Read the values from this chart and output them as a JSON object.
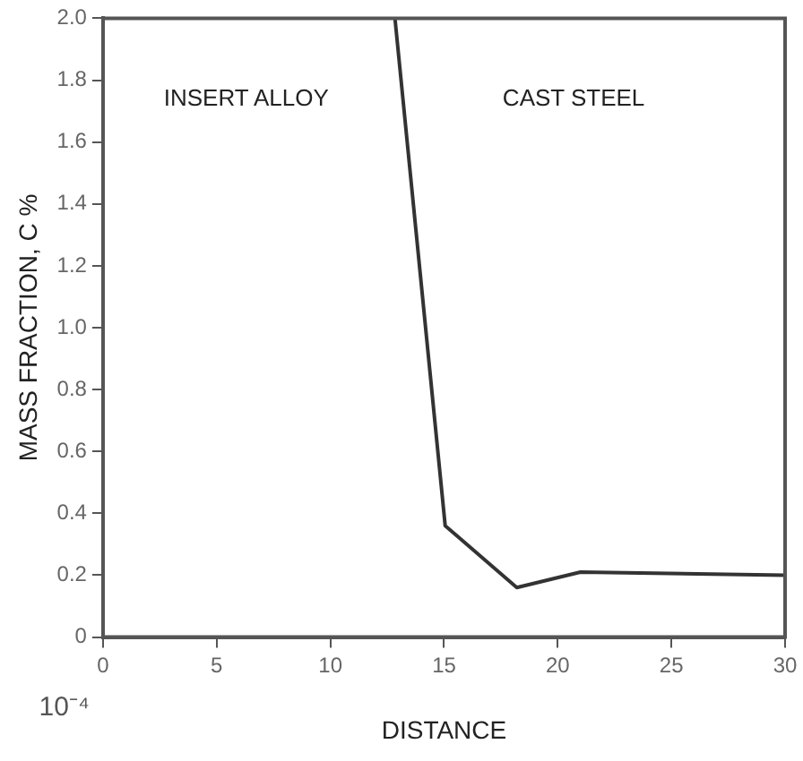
{
  "chart_data": {
    "type": "line",
    "xlabel": "DISTANCE",
    "ylabel": "MASS FRACTION, C %",
    "annotations": [
      "INSERT ALLOY",
      "CAST STEEL",
      "10⁻⁴"
    ],
    "series": [
      {
        "color": "#333333",
        "x": [
          12.84,
          15.05,
          18.2,
          21,
          30
        ],
        "values": [
          2.0,
          0.36,
          0.16,
          0.21,
          0.2
        ]
      }
    ],
    "xlim": [
      0,
      30
    ],
    "xticks": [
      0,
      5,
      10,
      15,
      20,
      25,
      30
    ],
    "ylim": [
      0,
      2.0
    ],
    "yticks": [
      {
        "value": 0,
        "label": "0"
      },
      {
        "value": 0.2,
        "label": "0.2"
      },
      {
        "value": 0.4,
        "label": "0.4"
      },
      {
        "value": 0.6,
        "label": "0.6"
      },
      {
        "value": 0.8,
        "label": "0.8"
      },
      {
        "value": 1.0,
        "label": "1.0"
      },
      {
        "value": 1.2,
        "label": "1.2"
      },
      {
        "value": 1.4,
        "label": "1.4"
      },
      {
        "value": 1.6,
        "label": "1.6"
      },
      {
        "value": 1.8,
        "label": "1.8"
      },
      {
        "value": 2.0,
        "label": "2.0"
      }
    ],
    "grid": false,
    "legend": false,
    "marker": "none",
    "line_style": "solid"
  }
}
